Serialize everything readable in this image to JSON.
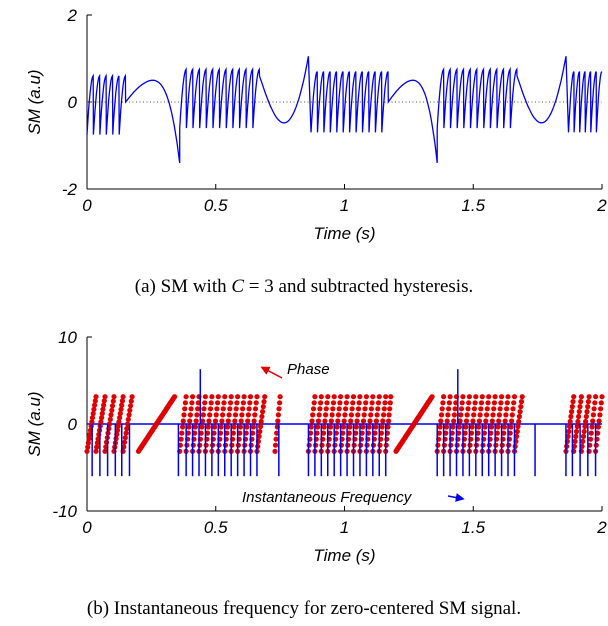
{
  "chart_data": [
    {
      "type": "line",
      "panel": "(a)",
      "xlabel": "Time (s)",
      "ylabel": "SM (a.u)",
      "xlim": [
        0,
        2
      ],
      "ylim": [
        -2,
        2
      ],
      "xticks": [
        "0",
        "0.5",
        "1",
        "1.5",
        "2"
      ],
      "yticks": [
        "2",
        "0",
        "-2"
      ],
      "reference_line": {
        "y": 0,
        "style": "dotted"
      },
      "colors": {
        "signal": "#0000ee"
      },
      "series": [
        {
          "description": "sawtooth SM signal, fringe segments separated by smooth turning-point arcs",
          "segments": [
            {
              "type": "fringes",
              "x0": 0.0,
              "x1": 0.15,
              "n": 6,
              "lo": -0.75,
              "hi": 0.6
            },
            {
              "type": "arc",
              "x0": 0.15,
              "x1": 0.36,
              "start": 0.0,
              "peak": 0.5,
              "end": -1.4
            },
            {
              "type": "fringes",
              "x0": 0.36,
              "x1": 0.67,
              "n": 12,
              "lo": -0.6,
              "hi": 0.75
            },
            {
              "type": "arc",
              "x0": 0.67,
              "x1": 0.86,
              "start": 0.6,
              "peak": -0.48,
              "end": 1.05
            },
            {
              "type": "fringes",
              "x0": 0.87,
              "x1": 1.17,
              "n": 12,
              "lo": -0.7,
              "hi": 0.7
            },
            {
              "type": "arc",
              "x0": 1.17,
              "x1": 1.36,
              "start": 0.0,
              "peak": 0.5,
              "end": -1.4
            },
            {
              "type": "fringes",
              "x0": 1.36,
              "x1": 1.67,
              "n": 12,
              "lo": -0.6,
              "hi": 0.75
            },
            {
              "type": "arc",
              "x0": 1.67,
              "x1": 1.86,
              "start": 0.6,
              "peak": -0.48,
              "end": 1.05
            },
            {
              "type": "fringes",
              "x0": 1.87,
              "x1": 2.0,
              "n": 6,
              "lo": -0.7,
              "hi": 0.7
            }
          ]
        }
      ]
    },
    {
      "type": "scatter",
      "panel": "(b)",
      "xlabel": "Time (s)",
      "ylabel": "SM (a.u)",
      "xlim": [
        0,
        2
      ],
      "ylim": [
        -10,
        10
      ],
      "xticks": [
        "0",
        "0.5",
        "1",
        "1.5",
        "2"
      ],
      "yticks": [
        "10",
        "0",
        "-10"
      ],
      "annotations": [
        {
          "text": "Phase",
          "color": "#e00000",
          "arrow_to": [
            0.68,
            6.5
          ]
        },
        {
          "text": "Instantaneous Frequency",
          "color": "#0000ee",
          "arrow_to": [
            1.46,
            -8.6
          ]
        }
      ],
      "colors": {
        "phase": "#e00000",
        "frequency": "#0000ee"
      },
      "series": [
        {
          "name": "Phase",
          "kind": "wrapped phase ramps (dots)",
          "y_range": [
            -3.14,
            3.14
          ],
          "ramps": [
            [
              0.0,
              0.035
            ],
            [
              0.035,
              0.07
            ],
            [
              0.07,
              0.105
            ],
            [
              0.105,
              0.14
            ],
            [
              0.14,
              0.175
            ],
            [
              0.2,
              0.34
            ],
            [
              0.36,
              0.385
            ],
            [
              0.385,
              0.41
            ],
            [
              0.41,
              0.435
            ],
            [
              0.435,
              0.46
            ],
            [
              0.46,
              0.485
            ],
            [
              0.485,
              0.51
            ],
            [
              0.51,
              0.535
            ],
            [
              0.535,
              0.56
            ],
            [
              0.56,
              0.585
            ],
            [
              0.585,
              0.61
            ],
            [
              0.61,
              0.635
            ],
            [
              0.635,
              0.66
            ],
            [
              0.66,
              0.69
            ],
            [
              0.73,
              0.75
            ],
            [
              0.86,
              0.885
            ],
            [
              0.885,
              0.91
            ],
            [
              0.91,
              0.935
            ],
            [
              0.935,
              0.96
            ],
            [
              0.96,
              0.985
            ],
            [
              0.985,
              1.01
            ],
            [
              1.01,
              1.035
            ],
            [
              1.035,
              1.06
            ],
            [
              1.06,
              1.085
            ],
            [
              1.085,
              1.11
            ],
            [
              1.11,
              1.135
            ],
            [
              1.135,
              1.16
            ],
            [
              1.16,
              1.18
            ],
            [
              1.2,
              1.34
            ],
            [
              1.36,
              1.385
            ],
            [
              1.385,
              1.41
            ],
            [
              1.41,
              1.435
            ],
            [
              1.435,
              1.46
            ],
            [
              1.46,
              1.485
            ],
            [
              1.485,
              1.51
            ],
            [
              1.51,
              1.535
            ],
            [
              1.535,
              1.56
            ],
            [
              1.56,
              1.585
            ],
            [
              1.585,
              1.61
            ],
            [
              1.61,
              1.635
            ],
            [
              1.635,
              1.66
            ],
            [
              1.66,
              1.69
            ],
            [
              1.86,
              1.89
            ],
            [
              1.89,
              1.92
            ],
            [
              1.92,
              1.95
            ],
            [
              1.95,
              1.975
            ],
            [
              1.975,
              2.0
            ]
          ]
        },
        {
          "name": "Instantaneous Frequency",
          "kind": "baseline at 0 with spikes",
          "baseline": 0,
          "spikes_neg": [
            0.02,
            0.05,
            0.08,
            0.11,
            0.135,
            0.165,
            0.355,
            0.385,
            0.41,
            0.435,
            0.46,
            0.485,
            0.51,
            0.535,
            0.56,
            0.585,
            0.61,
            0.635,
            0.66,
            0.745,
            0.86,
            0.885,
            0.91,
            0.935,
            0.96,
            0.985,
            1.01,
            1.035,
            1.06,
            1.085,
            1.11,
            1.135,
            1.16,
            1.36,
            1.385,
            1.41,
            1.435,
            1.46,
            1.485,
            1.51,
            1.535,
            1.56,
            1.585,
            1.61,
            1.635,
            1.66,
            1.74,
            1.86,
            1.885,
            1.915,
            1.945,
            1.975
          ],
          "spikes_neg_value": -6,
          "spikes_pos": [
            0.44,
            1.44
          ],
          "spikes_pos_value": 6.3
        }
      ]
    }
  ],
  "captions": {
    "a": {
      "label": "(a) SM with",
      "math": "C",
      "rest": " = 3 and subtracted hysteresis."
    },
    "b": {
      "text": "(b) Instantaneous frequency for zero-centered SM signal."
    }
  }
}
